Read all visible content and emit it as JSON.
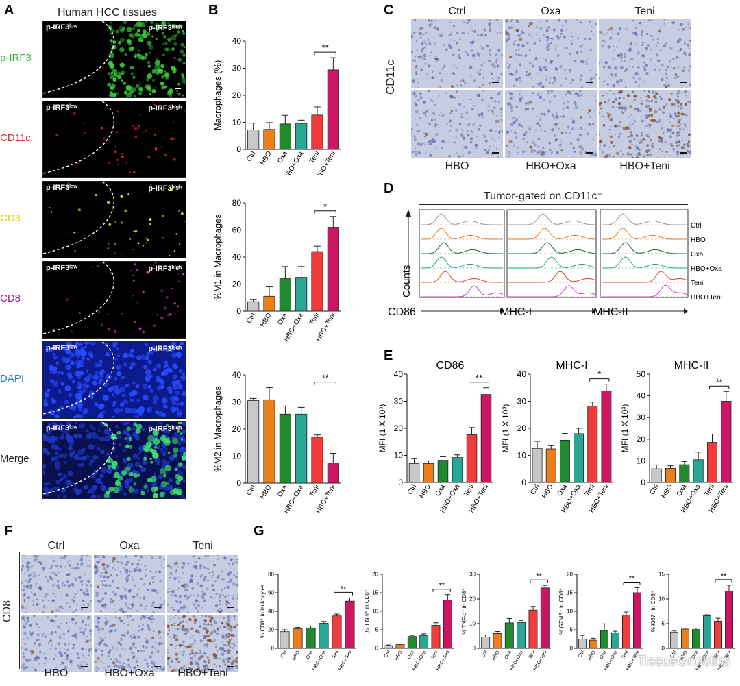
{
  "panelA": {
    "letter": "A",
    "title": "Human HCC tissues",
    "low_label": "p-IRF3ˡᵒʷ",
    "high_label": "p-IRF3ʰⁱᵍʰ",
    "rows": [
      {
        "label": "p-IRF3",
        "color": "#2db82d"
      },
      {
        "label": "CD11c",
        "color": "#e0282c"
      },
      {
        "label": "CD3",
        "color": "#e6cf00"
      },
      {
        "label": "CD8",
        "color": "#a0219a"
      },
      {
        "label": "DAPI",
        "color": "#1f7bd1"
      },
      {
        "label": "Merge",
        "color": "#222222"
      }
    ]
  },
  "panelC": {
    "letter": "C",
    "side_label": "CD11c",
    "top_labels": [
      "Ctrl",
      "Oxa",
      "Teni"
    ],
    "bottom_labels": [
      "HBO",
      "HBO+Oxa",
      "HBO+Teni"
    ]
  },
  "panelD": {
    "letter": "D",
    "title": "Tumor-gated on CD11c⁺",
    "y_label": "Counts",
    "x_labels": [
      "CD86",
      "MHC-I",
      "MHC-II"
    ],
    "legend": [
      "Ctrl",
      "HBO",
      "Oxa",
      "HBO+Oxa",
      "Teni",
      "HBO+Teni"
    ],
    "colors": [
      "#9a9a9a",
      "#e87a1e",
      "#1e6a3a",
      "#20a08a",
      "#e8402a",
      "#c83cc8"
    ]
  },
  "panelF": {
    "letter": "F",
    "side_label": "CD8",
    "top_labels": [
      "Ctrl",
      "Oxa",
      "Teni"
    ],
    "bottom_labels": [
      "HBO",
      "HBO+Oxa",
      "HBO+Teni"
    ]
  },
  "panelG": {
    "letter": "G"
  },
  "watermark": "TissueGnostics",
  "chart_data": [
    {
      "id": "B1",
      "panel": "B",
      "type": "bar",
      "ylabel": "Macrophages (%)",
      "ylim": [
        0,
        40
      ],
      "yticks": [
        0,
        10,
        20,
        30,
        40
      ],
      "categories": [
        "Ctrl",
        "HBO",
        "Oxa",
        "HBO+Oxa",
        "Teni",
        "HBO+Teni"
      ],
      "values": [
        7.2,
        7.4,
        9.4,
        9.6,
        12.7,
        29.4
      ],
      "errors": [
        2.5,
        2.5,
        3.2,
        1.2,
        3.0,
        4.5
      ],
      "sig": {
        "from": 4,
        "to": 5,
        "text": "**"
      }
    },
    {
      "id": "B2",
      "panel": "",
      "type": "bar",
      "ylabel": "%M1 in Macrophages",
      "ylim": [
        0,
        80
      ],
      "yticks": [
        0,
        20,
        40,
        60,
        80
      ],
      "categories": [
        "Ctrl",
        "HBO",
        "Oxa",
        "HBO+Oxa",
        "Teni",
        "HBO+Teni"
      ],
      "values": [
        7,
        11,
        24,
        25,
        44,
        62
      ],
      "errors": [
        1.5,
        7,
        9,
        8,
        4,
        8
      ],
      "sig": {
        "from": 4,
        "to": 5,
        "text": "*"
      }
    },
    {
      "id": "B3",
      "panel": "",
      "type": "bar",
      "ylabel": "%M2 in Macrophages",
      "ylim": [
        0,
        40
      ],
      "yticks": [
        0,
        10,
        20,
        30,
        40
      ],
      "categories": [
        "Ctrl",
        "HBO",
        "Oxa",
        "HBO+Oxa",
        "Teni",
        "HBO+Teni"
      ],
      "values": [
        30.5,
        30.8,
        25.5,
        25.5,
        17,
        7.5
      ],
      "errors": [
        0.8,
        4.5,
        3,
        2.5,
        0.8,
        3.5
      ],
      "sig": {
        "from": 4,
        "to": 5,
        "text": "**"
      }
    },
    {
      "id": "E1",
      "panel": "E",
      "type": "bar",
      "title": "CD86",
      "ylabel": "MFI (1 X 10³)",
      "ylim": [
        0,
        40
      ],
      "yticks": [
        0,
        10,
        20,
        30,
        40
      ],
      "categories": [
        "Ctrl",
        "HBO",
        "Oxa",
        "HBO+Oxa",
        "Teni",
        "HBO+Teni"
      ],
      "values": [
        7,
        7,
        8.2,
        9.2,
        17.6,
        32.5
      ],
      "errors": [
        1.8,
        1,
        1.3,
        1,
        2.7,
        2.5
      ],
      "sig": {
        "from": 4,
        "to": 5,
        "text": "**"
      }
    },
    {
      "id": "E2",
      "panel": "",
      "type": "bar",
      "title": "MHC-I",
      "ylabel": "MFI (1 X 10³)",
      "ylim": [
        0,
        40
      ],
      "yticks": [
        0,
        10,
        20,
        30,
        40
      ],
      "categories": [
        "Ctrl",
        "HBO",
        "Oxa",
        "HBO+Oxa",
        "Teni",
        "HBO+Teni"
      ],
      "values": [
        12.6,
        12.4,
        15.6,
        18,
        28.2,
        33.8
      ],
      "errors": [
        2.6,
        1.2,
        2.5,
        2,
        1.5,
        2.5
      ],
      "sig": {
        "from": 4,
        "to": 5,
        "text": "*"
      }
    },
    {
      "id": "E3",
      "panel": "",
      "type": "bar",
      "title": "MHC-II",
      "ylabel": "MFI (1 X 10³)",
      "ylim": [
        0,
        50
      ],
      "yticks": [
        0,
        10,
        20,
        30,
        40,
        50
      ],
      "categories": [
        "Ctrl",
        "HBO",
        "Oxa",
        "HBO+Oxa",
        "Teni",
        "HBO+Teni"
      ],
      "values": [
        6.3,
        6.5,
        8.2,
        10.5,
        18.5,
        37.5
      ],
      "errors": [
        1.8,
        1.2,
        1.5,
        3.5,
        3.8,
        4.5
      ],
      "sig": {
        "from": 4,
        "to": 5,
        "text": "**"
      }
    },
    {
      "id": "G1",
      "panel": "",
      "type": "bar",
      "ylabel": "% CD8⁺ in leukocytes",
      "ylim": [
        0,
        80
      ],
      "yticks": [
        0,
        20,
        40,
        60,
        80
      ],
      "categories": [
        "Ctrl",
        "HBO",
        "Oxa",
        "HBO+Oxa",
        "Teni",
        "HBO+Teni"
      ],
      "values": [
        18,
        21,
        22,
        27,
        35,
        51
      ],
      "errors": [
        2,
        1.5,
        2,
        2,
        2,
        3.5
      ],
      "sig": {
        "from": 4,
        "to": 5,
        "text": "**"
      }
    },
    {
      "id": "G2",
      "panel": "",
      "type": "bar",
      "ylabel": "% IFN-γ⁺ in CD8⁺",
      "ylim": [
        0,
        20
      ],
      "yticks": [
        0,
        5,
        10,
        15,
        20
      ],
      "categories": [
        "Ctrl",
        "HBO",
        "Oxa",
        "HBO+Oxa",
        "Teni",
        "HBO+Teni"
      ],
      "values": [
        0.7,
        1,
        3.2,
        3.5,
        6.2,
        13
      ],
      "errors": [
        0.2,
        0.2,
        0.3,
        0.4,
        0.7,
        1.5
      ],
      "sig": {
        "from": 4,
        "to": 5,
        "text": "**"
      }
    },
    {
      "id": "G3",
      "panel": "",
      "type": "bar",
      "ylabel": "% TNF-α⁺ in CD8⁺",
      "ylim": [
        0,
        30
      ],
      "yticks": [
        0,
        10,
        20,
        30
      ],
      "categories": [
        "Ctrl",
        "HBO",
        "Oxa",
        "HBO+Oxa",
        "Teni",
        "HBO+Teni"
      ],
      "values": [
        4.6,
        6,
        10.3,
        10.5,
        15.5,
        24.5
      ],
      "errors": [
        0.8,
        0.8,
        1.8,
        0.8,
        1.5,
        1
      ],
      "sig": {
        "from": 4,
        "to": 5,
        "text": "**"
      }
    },
    {
      "id": "G4",
      "panel": "",
      "type": "bar",
      "ylabel": "% GZMB⁺ in CD8⁺",
      "ylim": [
        0,
        20
      ],
      "yticks": [
        0,
        5,
        10,
        15,
        20
      ],
      "categories": [
        "Ctrl",
        "HBO",
        "Oxa",
        "HBO+Oxa",
        "Teni",
        "HBO+Teni"
      ],
      "values": [
        2.5,
        2.2,
        4.8,
        4.2,
        9,
        15
      ],
      "errors": [
        1,
        0.5,
        1.8,
        0.4,
        0.8,
        1.4
      ],
      "sig": {
        "from": 4,
        "to": 5,
        "text": "**"
      }
    },
    {
      "id": "G5",
      "panel": "",
      "type": "bar",
      "ylabel": "% Ki67⁺ in CD8⁺",
      "ylim": [
        0,
        15
      ],
      "yticks": [
        0,
        5,
        10,
        15
      ],
      "categories": [
        "Ctrl",
        "HBO",
        "Oxa",
        "HBO+Oxa",
        "Teni",
        "HBO+Teni"
      ],
      "values": [
        3.3,
        3.9,
        3.8,
        6.6,
        5.5,
        11.6
      ],
      "errors": [
        0.3,
        0.2,
        0.3,
        0.2,
        0.6,
        1.2
      ],
      "sig": {
        "from": 4,
        "to": 5,
        "text": "**"
      }
    }
  ],
  "bar_colors": [
    "#c8c8c8",
    "#ee7d1c",
    "#1f8a2e",
    "#2aa896",
    "#f23b3b",
    "#cc1563"
  ]
}
